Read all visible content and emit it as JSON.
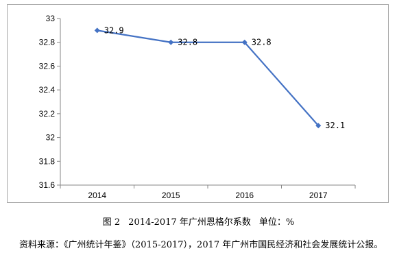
{
  "chart_data": {
    "type": "line",
    "categories": [
      "2014",
      "2015",
      "2016",
      "2017"
    ],
    "values": [
      32.9,
      32.8,
      32.8,
      32.1
    ],
    "data_labels": [
      "32.9",
      "32.8",
      "32.8",
      "32.1"
    ],
    "ylim": [
      31.6,
      33
    ],
    "y_ticks": [
      "33",
      "32.8",
      "32.6",
      "32.4",
      "32.2",
      "32",
      "31.8",
      "31.6"
    ],
    "xlabel": "",
    "ylabel": "",
    "grid": false,
    "legend": "none",
    "line_color": "#4472C4",
    "marker": "diamond"
  },
  "caption": {
    "figure_no": "图 2",
    "title": "2014-2017 年广州恩格尔系数",
    "unit": "单位：%"
  },
  "source_note": "资料来源：《广州统计年鉴》（2015-2017），2017 年广州市国民经济和社会发展统计公报。"
}
